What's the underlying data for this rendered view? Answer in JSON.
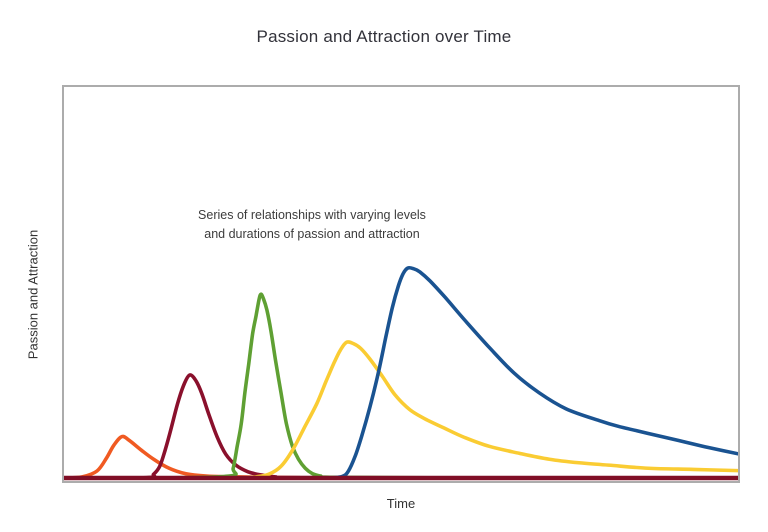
{
  "title": "Passion and Attraction over Time",
  "axes": {
    "x_label": "Time",
    "y_label": "Passion and Attraction"
  },
  "annotation": {
    "line1": "Series of relationships with varying levels",
    "line2": "and durations of passion and attraction"
  },
  "colors": {
    "spine_gray": "#acacac",
    "baseline_red": "#800e26",
    "background": "#ffffff",
    "text_dark": "#32323a"
  },
  "chart_data": {
    "type": "line",
    "title": "Passion and Attraction over Time",
    "xlabel": "Time",
    "ylabel": "Passion and Attraction",
    "annotation": "Series of relationships with varying levels and durations of passion and attraction",
    "grid": false,
    "legend": "none",
    "x_axis": {
      "range": [
        0,
        100
      ],
      "ticks": "none"
    },
    "y_axis": {
      "range": [
        0,
        100
      ],
      "ticks": "none"
    },
    "baseline": {
      "y": 0,
      "color": "#800e26",
      "width": 4.5
    },
    "line_width": 3.6,
    "series": [
      {
        "name": "relationship-1-orange",
        "color": "#f05a22",
        "points": [
          [
            0,
            0
          ],
          [
            2.7,
            0.3
          ],
          [
            4.9,
            1.8
          ],
          [
            6.3,
            5.1
          ],
          [
            7.4,
            8.4
          ],
          [
            8.6,
            10.6
          ],
          [
            9.7,
            9.6
          ],
          [
            11.5,
            7.1
          ],
          [
            13.3,
            4.8
          ],
          [
            15.6,
            2.5
          ],
          [
            18.1,
            1.1
          ],
          [
            21.1,
            0.5
          ],
          [
            24.8,
            0.3
          ],
          [
            29.5,
            0.2
          ],
          [
            35,
            0.1
          ]
        ]
      },
      {
        "name": "relationship-2-maroon",
        "color": "#8a102c",
        "points": [
          [
            0,
            0
          ],
          [
            12.2,
            0.1
          ],
          [
            13.3,
            1
          ],
          [
            14.2,
            3
          ],
          [
            15,
            7.1
          ],
          [
            15.9,
            12.7
          ],
          [
            16.8,
            18.7
          ],
          [
            17.7,
            23.5
          ],
          [
            18.6,
            26.3
          ],
          [
            19.5,
            25.1
          ],
          [
            20.4,
            21.8
          ],
          [
            21.5,
            16.2
          ],
          [
            22.7,
            10.6
          ],
          [
            24,
            6.1
          ],
          [
            25.5,
            3.3
          ],
          [
            27.3,
            1.6
          ],
          [
            29.2,
            0.8
          ],
          [
            31.4,
            0.3
          ],
          [
            34.4,
            0.1
          ],
          [
            100,
            0
          ]
        ]
      },
      {
        "name": "relationship-3-green",
        "color": "#5fa033",
        "points": [
          [
            13,
            0
          ],
          [
            24.5,
            0.5
          ],
          [
            25.1,
            2.5
          ],
          [
            25.7,
            8.1
          ],
          [
            26.3,
            13.9
          ],
          [
            26.8,
            21.3
          ],
          [
            27.4,
            29.1
          ],
          [
            28,
            37
          ],
          [
            28.5,
            41.5
          ],
          [
            28.9,
            45.3
          ],
          [
            29.2,
            47
          ],
          [
            29.6,
            45.8
          ],
          [
            30.1,
            43
          ],
          [
            30.7,
            37.7
          ],
          [
            31.4,
            29.9
          ],
          [
            32.2,
            21.8
          ],
          [
            33,
            13.9
          ],
          [
            33.9,
            8.1
          ],
          [
            34.8,
            4.8
          ],
          [
            35.8,
            2.5
          ],
          [
            36.9,
            1.1
          ],
          [
            38.1,
            0.5
          ],
          [
            39.5,
            0.2
          ],
          [
            61.7,
            0
          ]
        ]
      },
      {
        "name": "relationship-4-yellow",
        "color": "#facc33",
        "points": [
          [
            26.3,
            0
          ],
          [
            28.5,
            0.3
          ],
          [
            30.4,
            1
          ],
          [
            32.2,
            3
          ],
          [
            33.9,
            7.1
          ],
          [
            35.7,
            13
          ],
          [
            37.5,
            19
          ],
          [
            38.9,
            24.8
          ],
          [
            40.1,
            29.6
          ],
          [
            41,
            32.7
          ],
          [
            41.9,
            34.7
          ],
          [
            42.9,
            34.4
          ],
          [
            44,
            33.2
          ],
          [
            45.4,
            30.4
          ],
          [
            47.2,
            26.1
          ],
          [
            49.1,
            21.3
          ],
          [
            51.3,
            17.5
          ],
          [
            53.5,
            15.2
          ],
          [
            56.5,
            12.7
          ],
          [
            59.4,
            10.4
          ],
          [
            63.1,
            8.1
          ],
          [
            67.6,
            6.3
          ],
          [
            72,
            4.8
          ],
          [
            76.4,
            3.9
          ],
          [
            80.8,
            3.3
          ],
          [
            86.7,
            2.5
          ],
          [
            93.4,
            2.2
          ],
          [
            100,
            1.9
          ]
        ]
      },
      {
        "name": "relationship-5-blue",
        "color": "#1a5391",
        "points": [
          [
            39.5,
            0
          ],
          [
            41.3,
            0.4
          ],
          [
            42.2,
            1.8
          ],
          [
            43.2,
            5.6
          ],
          [
            44.2,
            10.9
          ],
          [
            45.4,
            18.2
          ],
          [
            46.6,
            26.6
          ],
          [
            47.8,
            36.5
          ],
          [
            48.7,
            43.5
          ],
          [
            49.6,
            49.1
          ],
          [
            50.3,
            52.2
          ],
          [
            51,
            53.7
          ],
          [
            51.9,
            53.5
          ],
          [
            52.8,
            52.7
          ],
          [
            54.3,
            50.4
          ],
          [
            56.5,
            46.3
          ],
          [
            59.4,
            40.5
          ],
          [
            63.1,
            33.4
          ],
          [
            66.8,
            26.8
          ],
          [
            70.5,
            21.8
          ],
          [
            74.5,
            17.7
          ],
          [
            79.4,
            14.7
          ],
          [
            82.3,
            13.2
          ],
          [
            86.7,
            11.4
          ],
          [
            91.2,
            9.6
          ],
          [
            95.6,
            7.8
          ],
          [
            100,
            6.2
          ]
        ]
      }
    ]
  }
}
